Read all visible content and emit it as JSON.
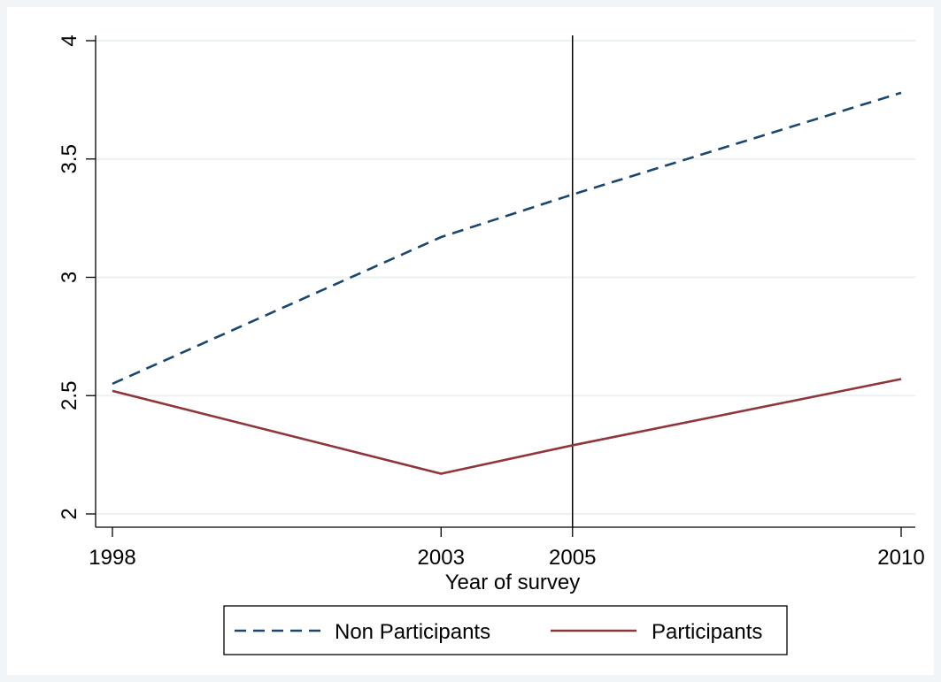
{
  "chart_data": {
    "type": "line",
    "title": "",
    "xlabel": "Year of survey",
    "ylabel": "",
    "x": [
      1998,
      2003,
      2005,
      2010
    ],
    "xlim": [
      1998,
      2010
    ],
    "ylim": [
      2,
      4
    ],
    "x_ticks": [
      "1998",
      "2003",
      "2005",
      "2010"
    ],
    "y_ticks": [
      "2",
      "2.5",
      "3",
      "3.5",
      "4"
    ],
    "grid": "horizontal",
    "reference_line": {
      "x": 2005
    },
    "series": [
      {
        "name": "Non Participants",
        "values": [
          2.55,
          3.17,
          3.35,
          3.78
        ],
        "color": "#1a476f",
        "style": "dashed"
      },
      {
        "name": "Participants",
        "values": [
          2.52,
          2.17,
          2.29,
          2.57
        ],
        "color": "#90353b",
        "style": "solid"
      }
    ],
    "legend": {
      "placement": "bottom"
    }
  },
  "colors": {
    "background": "#f2f5f7",
    "plot": "#ffffff",
    "grid": "#eaf2f3"
  }
}
